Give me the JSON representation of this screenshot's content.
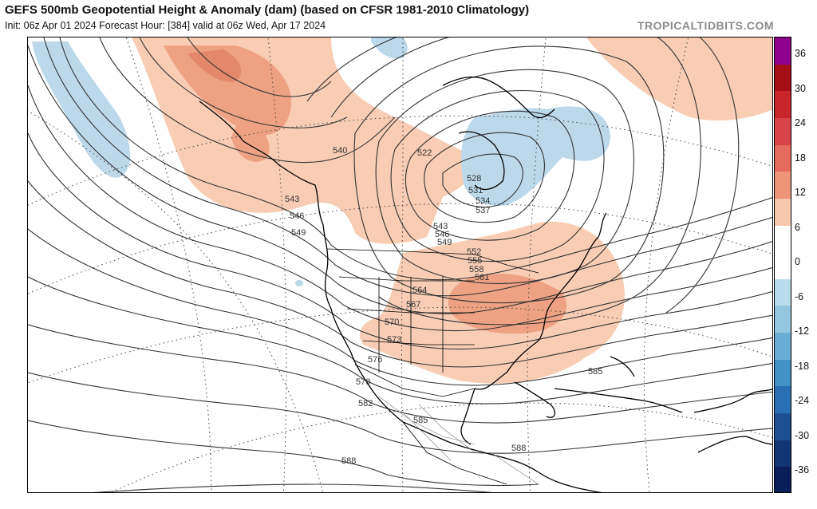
{
  "header": {
    "title": "GEFS 500mb Geopotential Height & Anomaly (dam) (based on CFSR 1981-2010 Climatology)",
    "subtitle": "Init: 06z Apr 01 2024   Forecast Hour: [384]   valid at 06z Wed, Apr 17 2024",
    "brand": "TROPICALTIDBITS.COM"
  },
  "colorbar": {
    "labels": [
      "36",
      "30",
      "24",
      "18",
      "12",
      "6",
      "0",
      "-6",
      "-12",
      "-18",
      "-24",
      "-30",
      "-36"
    ],
    "colors": [
      "#8e008e",
      "#a50f15",
      "#c9252b",
      "#d9434a",
      "#e36a5c",
      "#ee9478",
      "#f7c7ad",
      "#ffffff",
      "#ffffff",
      "#b9dcec",
      "#94c6e0",
      "#6aaed6",
      "#4292c6",
      "#2a6fb3",
      "#1e4f95",
      "#123574",
      "#0a1f57"
    ]
  },
  "map": {
    "contour_labels": [
      "522",
      "528",
      "531",
      "534",
      "537",
      "540",
      "543",
      "543",
      "546",
      "546",
      "549",
      "549",
      "552",
      "555",
      "558",
      "561",
      "564",
      "567",
      "570",
      "573",
      "576",
      "579",
      "582",
      "585",
      "585",
      "588",
      "588"
    ]
  }
}
